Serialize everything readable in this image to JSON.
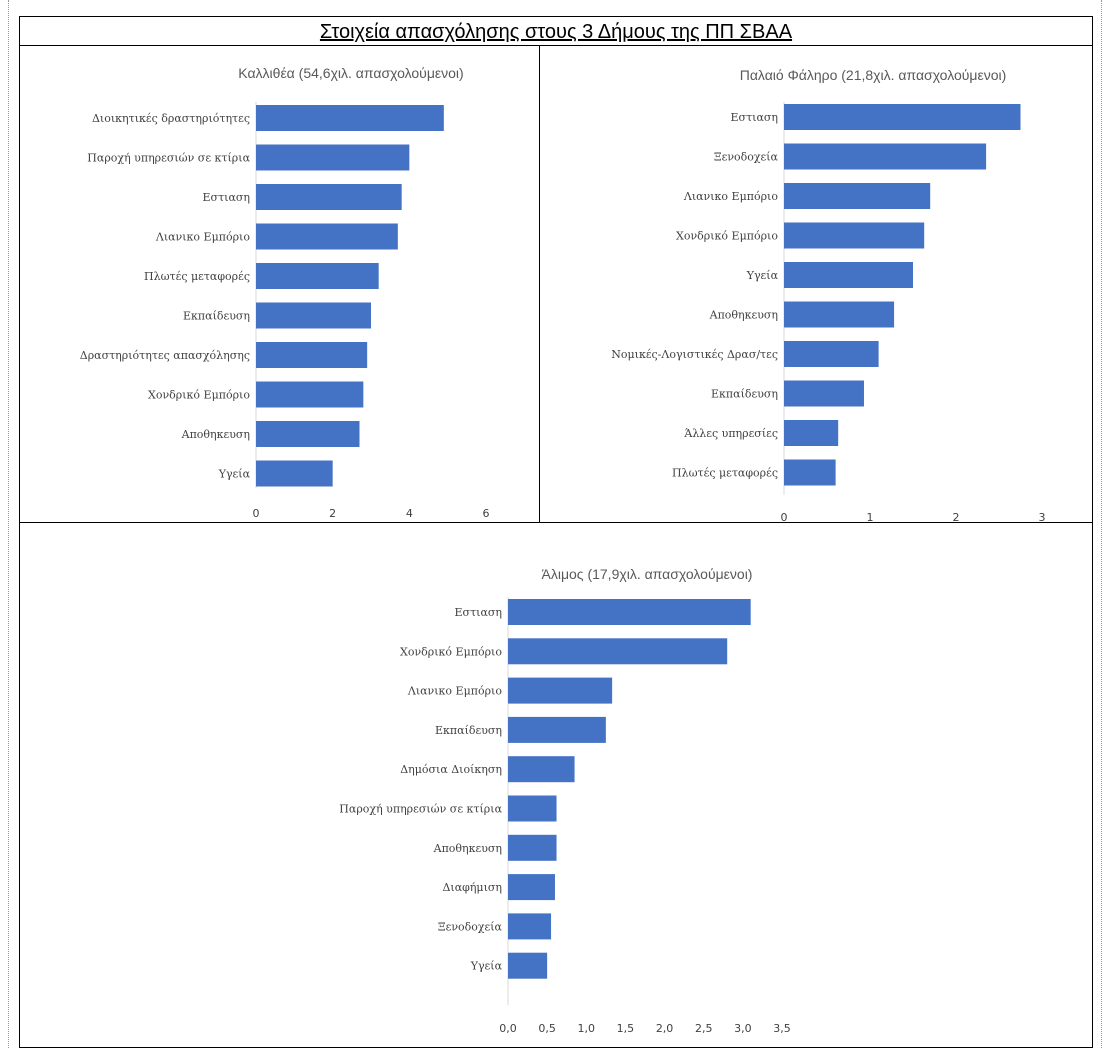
{
  "page_title": "Στοιχεία απασχόλησης στους 3 Δήμους της ΠΠ ΣΒΑΑ",
  "chart_data": [
    {
      "type": "bar",
      "orientation": "horizontal",
      "title": "Καλλιθέα  (54,6χιλ. απασχολούμενοι)",
      "categories": [
        "Διοικητικές δραστηριότητες",
        "Παροχή υπηρεσιών σε κτίρια",
        "Εστιαση",
        "Λιανικο Εμπόριο",
        "Πλωτές μεταφορές",
        "Εκπαίδευση",
        "Δραστηριότητες απασχόλησης",
        "Χονδρικό Εμπόριο",
        "Αποθηκευση",
        "Υγεία"
      ],
      "values": [
        4.9,
        4.0,
        3.8,
        3.7,
        3.2,
        3.0,
        2.9,
        2.8,
        2.7,
        2.0
      ],
      "xlim": [
        0,
        6
      ],
      "xticks": [
        "0",
        "2",
        "4",
        "6"
      ],
      "xtick_values": [
        0,
        2,
        4,
        6
      ],
      "color": "#4472c4",
      "grid": false
    },
    {
      "type": "bar",
      "orientation": "horizontal",
      "title": "Παλαιό Φάληρο (21,8χιλ. απασχολούμενοι)",
      "categories": [
        "Εστιαση",
        "Ξενοδοχεία",
        "Λιανικο Εμπόριο",
        "Χονδρικό Εμπόριο",
        "Υγεία",
        "Αποθηκευση",
        "Νομικές-Λογιστικές Δρασ/τες",
        "Εκπαίδευση",
        "Άλλες υπηρεσίες",
        "Πλωτές μεταφορές"
      ],
      "values": [
        2.75,
        2.35,
        1.7,
        1.63,
        1.5,
        1.28,
        1.1,
        0.93,
        0.63,
        0.6
      ],
      "xlim": [
        0,
        3
      ],
      "xticks": [
        "0",
        "1",
        "2",
        "3"
      ],
      "xtick_values": [
        0,
        1,
        2,
        3
      ],
      "color": "#4472c4",
      "grid": false
    },
    {
      "type": "bar",
      "orientation": "horizontal",
      "title": "Άλιμος  (17,9χιλ. απασχολούμενοι)",
      "categories": [
        "Εστιαση",
        "Χονδρικό Εμπόριο",
        "Λιανικο Εμπόριο",
        "Εκπαίδευση",
        "Δημόσια Διοίκηση",
        "Παροχή υπηρεσιών σε κτίρια",
        "Αποθηκευση",
        "Διαφήμιση",
        "Ξενοδοχεία",
        "Υγεία"
      ],
      "values": [
        3.1,
        2.8,
        1.33,
        1.25,
        0.85,
        0.62,
        0.62,
        0.6,
        0.55,
        0.5
      ],
      "xlim": [
        0,
        3.5
      ],
      "xticks": [
        "0,0",
        "0,5",
        "1,0",
        "1,5",
        "2,0",
        "2,5",
        "3,0",
        "3,5"
      ],
      "xtick_values": [
        0,
        0.5,
        1.0,
        1.5,
        2.0,
        2.5,
        3.0,
        3.5
      ],
      "color": "#4472c4",
      "grid": false
    }
  ]
}
